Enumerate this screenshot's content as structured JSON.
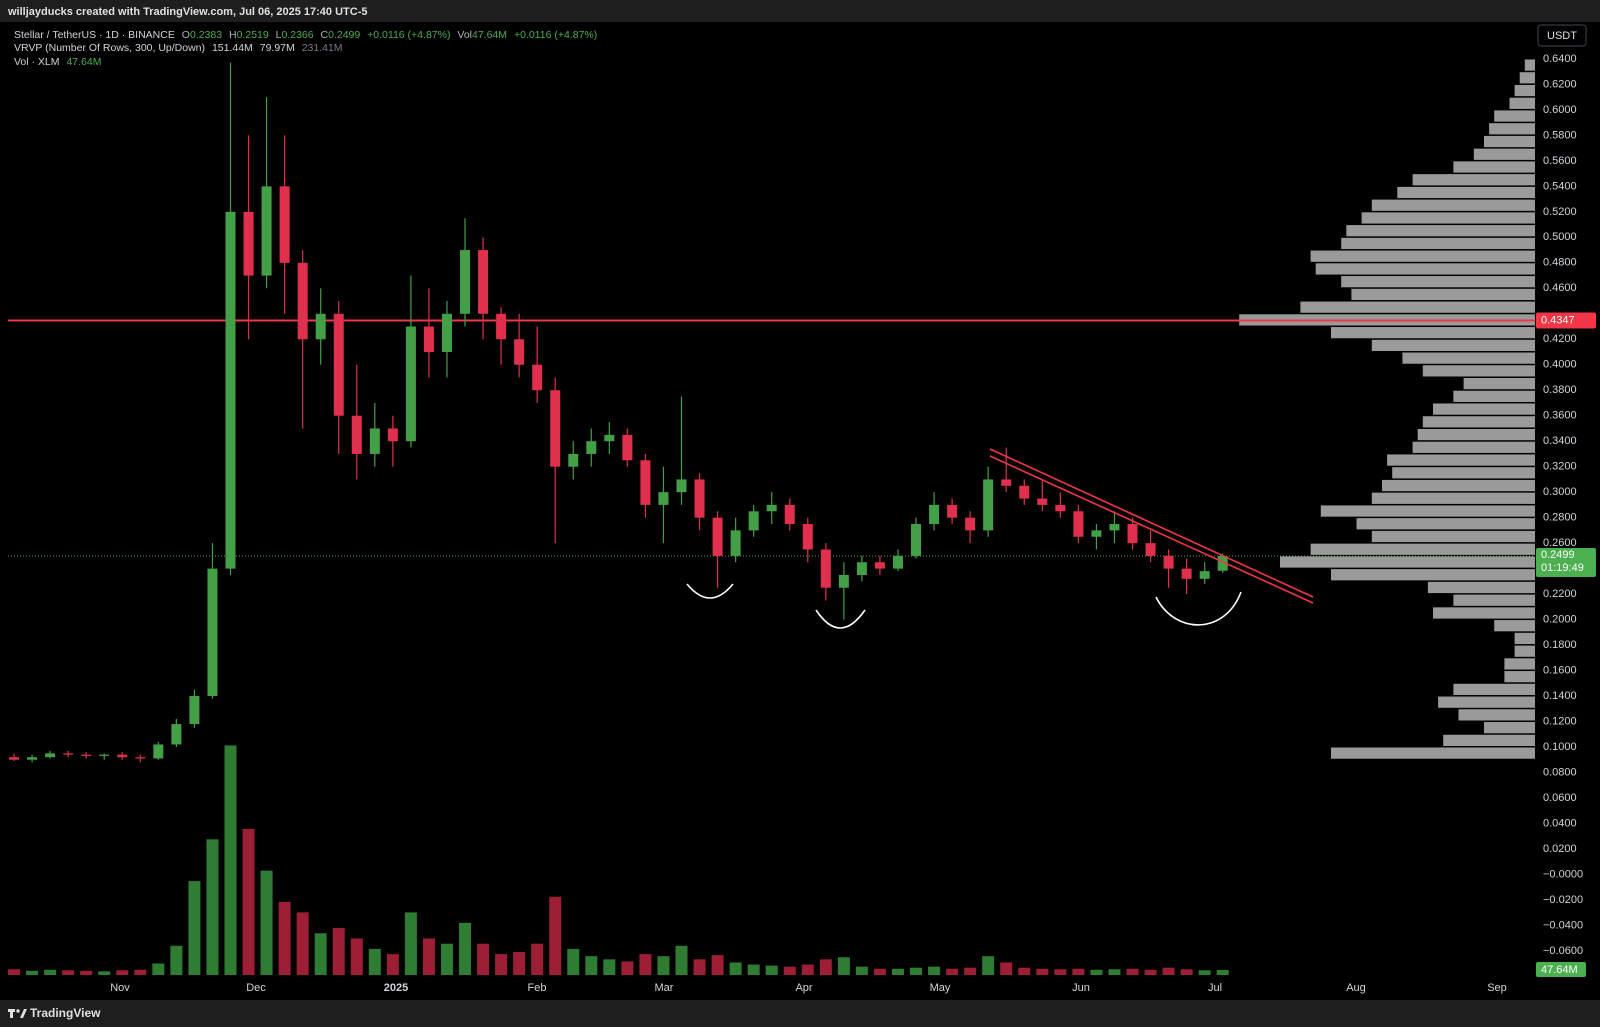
{
  "header": {
    "caption": "willjayducks created with TradingView.com, Jul 06, 2025 17:40 UTC-5"
  },
  "footer": {
    "brand": "TradingView"
  },
  "chart_data": {
    "type": "candlestick",
    "title": "Stellar / TetherUS · 1D · BINANCE",
    "currency": "USDT",
    "legend": {
      "o": "O",
      "h": "H",
      "l": "L",
      "c": "C",
      "change": "+0.0116 (+4.87%)",
      "vol": "Vol",
      "vrvp": "VRVP (Number Of Rows, 300, Up/Down)",
      "vrvp_up": "151.44M",
      "vrvp_down": "79.97M",
      "vrvp_total": "231.41M",
      "vol_study": "Vol · XLM",
      "volume_label": "47.64M",
      "countdown": "01:19:49"
    },
    "up_color": "#43a047",
    "down_color": "#e0304e",
    "volume_up_color": "#2e7d32",
    "volume_down_color": "#9c1f35",
    "open": [
      0.092,
      0.09,
      0.092,
      0.095,
      0.094,
      0.093,
      0.094,
      0.092,
      0.091,
      0.102,
      0.118,
      0.14,
      0.24,
      0.52,
      0.47,
      0.54,
      0.48,
      0.42,
      0.44,
      0.36,
      0.33,
      0.35,
      0.34,
      0.43,
      0.41,
      0.44,
      0.49,
      0.44,
      0.42,
      0.4,
      0.38,
      0.32,
      0.33,
      0.34,
      0.345,
      0.325,
      0.29,
      0.3,
      0.31,
      0.28,
      0.25,
      0.27,
      0.285,
      0.29,
      0.275,
      0.255,
      0.225,
      0.235,
      0.245,
      0.24,
      0.25,
      0.275,
      0.29,
      0.28,
      0.27,
      0.31,
      0.305,
      0.295,
      0.29,
      0.285,
      0.265,
      0.27,
      0.275,
      0.26,
      0.25,
      0.24,
      0.232,
      0.2383
    ],
    "high": [
      0.095,
      0.094,
      0.097,
      0.097,
      0.096,
      0.095,
      0.096,
      0.094,
      0.104,
      0.122,
      0.145,
      0.26,
      0.637,
      0.58,
      0.61,
      0.58,
      0.49,
      0.46,
      0.45,
      0.4,
      0.37,
      0.36,
      0.47,
      0.46,
      0.45,
      0.515,
      0.5,
      0.445,
      0.44,
      0.43,
      0.39,
      0.34,
      0.35,
      0.355,
      0.35,
      0.33,
      0.32,
      0.375,
      0.315,
      0.285,
      0.28,
      0.29,
      0.3,
      0.295,
      0.28,
      0.26,
      0.245,
      0.25,
      0.25,
      0.255,
      0.28,
      0.3,
      0.295,
      0.285,
      0.32,
      0.335,
      0.31,
      0.31,
      0.3,
      0.29,
      0.275,
      0.285,
      0.28,
      0.27,
      0.255,
      0.248,
      0.245,
      0.2519
    ],
    "low": [
      0.089,
      0.088,
      0.091,
      0.092,
      0.091,
      0.09,
      0.09,
      0.088,
      0.09,
      0.1,
      0.115,
      0.138,
      0.235,
      0.42,
      0.46,
      0.44,
      0.35,
      0.4,
      0.33,
      0.31,
      0.32,
      0.32,
      0.335,
      0.39,
      0.39,
      0.43,
      0.42,
      0.4,
      0.39,
      0.37,
      0.26,
      0.31,
      0.32,
      0.33,
      0.32,
      0.28,
      0.26,
      0.29,
      0.27,
      0.225,
      0.245,
      0.265,
      0.275,
      0.27,
      0.245,
      0.215,
      0.2,
      0.23,
      0.235,
      0.238,
      0.248,
      0.27,
      0.275,
      0.26,
      0.265,
      0.3,
      0.29,
      0.285,
      0.28,
      0.26,
      0.255,
      0.26,
      0.255,
      0.245,
      0.225,
      0.22,
      0.228,
      0.2366
    ],
    "close": [
      0.09,
      0.092,
      0.095,
      0.094,
      0.093,
      0.094,
      0.092,
      0.091,
      0.102,
      0.118,
      0.14,
      0.24,
      0.52,
      0.47,
      0.54,
      0.48,
      0.42,
      0.44,
      0.36,
      0.33,
      0.35,
      0.34,
      0.43,
      0.41,
      0.44,
      0.49,
      0.44,
      0.42,
      0.4,
      0.38,
      0.32,
      0.33,
      0.34,
      0.345,
      0.325,
      0.29,
      0.3,
      0.31,
      0.28,
      0.25,
      0.27,
      0.285,
      0.29,
      0.275,
      0.255,
      0.225,
      0.235,
      0.245,
      0.24,
      0.25,
      0.275,
      0.29,
      0.28,
      0.27,
      0.31,
      0.305,
      0.295,
      0.29,
      0.285,
      0.265,
      0.27,
      0.275,
      0.26,
      0.25,
      0.24,
      0.232,
      0.238,
      0.2499
    ],
    "volume": [
      55,
      40,
      50,
      45,
      40,
      35,
      45,
      50,
      110,
      280,
      900,
      1300,
      2200,
      1400,
      1000,
      700,
      600,
      400,
      450,
      350,
      250,
      200,
      600,
      350,
      300,
      500,
      300,
      200,
      220,
      300,
      750,
      250,
      180,
      150,
      130,
      200,
      180,
      280,
      150,
      190,
      120,
      100,
      90,
      80,
      100,
      150,
      170,
      80,
      60,
      60,
      70,
      80,
      60,
      70,
      180,
      120,
      70,
      60,
      55,
      60,
      50,
      55,
      60,
      50,
      70,
      55,
      45,
      47.64
    ],
    "profile": {
      "color": "#9a9a9a",
      "bins": [
        0.09,
        0.1,
        0.11,
        0.12,
        0.13,
        0.14,
        0.15,
        0.16,
        0.17,
        0.18,
        0.19,
        0.2,
        0.21,
        0.22,
        0.23,
        0.24,
        0.25,
        0.26,
        0.27,
        0.28,
        0.29,
        0.3,
        0.31,
        0.32,
        0.33,
        0.34,
        0.35,
        0.36,
        0.37,
        0.38,
        0.39,
        0.4,
        0.41,
        0.42,
        0.43,
        0.44,
        0.45,
        0.46,
        0.47,
        0.48,
        0.49,
        0.5,
        0.51,
        0.52,
        0.53,
        0.54,
        0.55,
        0.56,
        0.57,
        0.58,
        0.59,
        0.6,
        0.61,
        0.62,
        0.63,
        0.64
      ],
      "values": [
        4,
        1.8,
        1,
        1.5,
        1.9,
        1.6,
        0.6,
        0.6,
        0.4,
        0.4,
        0.8,
        2,
        1.6,
        2.1,
        4,
        5,
        4.4,
        3.2,
        3.5,
        4.2,
        3.2,
        3,
        2.8,
        2.9,
        2.4,
        2.3,
        2.2,
        2,
        1.6,
        1.4,
        2.2,
        2.6,
        3.2,
        4,
        5.8,
        4.6,
        3.6,
        3.8,
        4.3,
        4.4,
        3.8,
        3.7,
        3.4,
        3.2,
        2.7,
        2.4,
        1.6,
        1.2,
        1,
        0.9,
        0.8,
        0.5,
        0.4,
        0.3,
        0.2
      ]
    },
    "hline": {
      "value": 0.4347,
      "color": "#f23645"
    },
    "last_price_color": "#4caf50",
    "xlabels": [
      "Nov",
      "Dec",
      "2025",
      "Feb",
      "Mar",
      "Apr",
      "May",
      "Jun",
      "Jul",
      "Aug",
      "Sep"
    ],
    "ylim": [
      -0.0813,
      0.669
    ],
    "yticks": [
      {
        "value": 0.64,
        "label": "0.6400"
      },
      {
        "value": 0.62,
        "label": "0.6200"
      },
      {
        "value": 0.6,
        "label": "0.6000"
      },
      {
        "value": 0.58,
        "label": "0.5800"
      },
      {
        "value": 0.56,
        "label": "0.5600"
      },
      {
        "value": 0.54,
        "label": "0.5400"
      },
      {
        "value": 0.52,
        "label": "0.5200"
      },
      {
        "value": 0.5,
        "label": "0.5000"
      },
      {
        "value": 0.48,
        "label": "0.4800"
      },
      {
        "value": 0.46,
        "label": "0.4600"
      },
      {
        "value": 0.42,
        "label": "0.4200"
      },
      {
        "value": 0.4,
        "label": "0.4000"
      },
      {
        "value": 0.38,
        "label": "0.3800"
      },
      {
        "value": 0.36,
        "label": "0.3600"
      },
      {
        "value": 0.34,
        "label": "0.3400"
      },
      {
        "value": 0.32,
        "label": "0.3200"
      },
      {
        "value": 0.3,
        "label": "0.3000"
      },
      {
        "value": 0.28,
        "label": "0.2800"
      },
      {
        "value": 0.26,
        "label": "0.2600"
      },
      {
        "value": 0.22,
        "label": "0.2200"
      },
      {
        "value": 0.2,
        "label": "0.2000"
      },
      {
        "value": 0.18,
        "label": "0.1800"
      },
      {
        "value": 0.16,
        "label": "0.1600"
      },
      {
        "value": 0.14,
        "label": "0.1400"
      },
      {
        "value": 0.12,
        "label": "0.1200"
      },
      {
        "value": 0.1,
        "label": "0.1000"
      },
      {
        "value": 0.08,
        "label": "0.0800"
      },
      {
        "value": 0.06,
        "label": "0.0600"
      },
      {
        "value": 0.04,
        "label": "0.0400"
      },
      {
        "value": 0.02,
        "label": "0.0200"
      },
      {
        "value": 0,
        "label": "−0.0000"
      },
      {
        "value": -0.02,
        "label": "−0.0200"
      },
      {
        "value": -0.04,
        "label": "−0.0400"
      },
      {
        "value": -0.06,
        "label": "−0.0600"
      }
    ],
    "grid": false
  }
}
